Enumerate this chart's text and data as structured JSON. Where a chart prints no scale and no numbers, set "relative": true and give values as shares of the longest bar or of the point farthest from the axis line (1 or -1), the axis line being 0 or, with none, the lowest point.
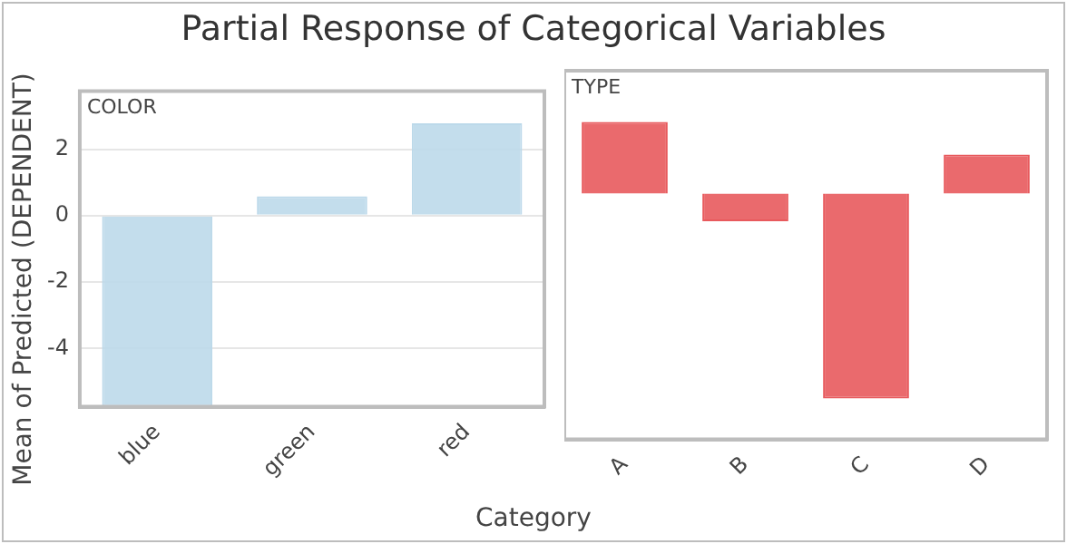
{
  "chart_data": [
    {
      "type": "bar",
      "title": "Partial Response of Categorical Variables",
      "subtitle": "COLOR",
      "xlabel": "Category",
      "ylabel": "Mean of Predicted (DEPENDENT)",
      "categories": [
        "blue",
        "green",
        "red"
      ],
      "values": [
        -5.75,
        0.58,
        2.78
      ],
      "color": "#bcd9ea",
      "ylim": [
        -5.75,
        3.75
      ],
      "yticks": [
        -4,
        -2,
        0,
        2
      ],
      "grid": "y"
    },
    {
      "type": "bar",
      "subtitle": "TYPE",
      "categories": [
        "A",
        "B",
        "C",
        "D"
      ],
      "values": [
        0.35,
        -0.135,
        -1,
        0.19
      ],
      "color": "#e85a5d",
      "relative": true
    }
  ]
}
